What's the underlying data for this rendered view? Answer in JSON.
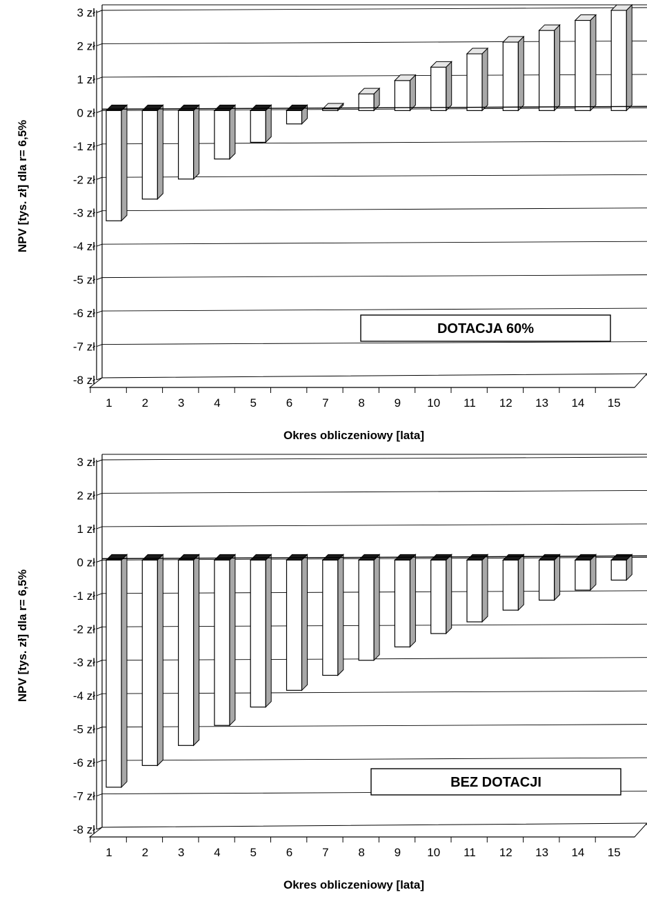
{
  "chart_data": [
    {
      "type": "bar",
      "annotation": "DOTACJA 60%",
      "xlabel": "Okres obliczeniowy [lata]",
      "ylabel": "NPV [tys. zł] dla r= 6,5%",
      "categories": [
        "1",
        "2",
        "3",
        "4",
        "5",
        "6",
        "7",
        "8",
        "9",
        "10",
        "11",
        "12",
        "13",
        "14",
        "15"
      ],
      "values": [
        -3.3,
        -2.65,
        -2.05,
        -1.45,
        -0.95,
        -0.4,
        0.05,
        0.5,
        0.9,
        1.3,
        1.7,
        2.05,
        2.4,
        2.7,
        3.0
      ],
      "ylim": [
        -8,
        3
      ],
      "yticks": [
        3,
        2,
        1,
        0,
        -1,
        -2,
        -3,
        -4,
        -5,
        -6,
        -7,
        -8
      ],
      "ytick_labels": [
        "3 zł",
        "2 zł",
        "1 zł",
        "0 zł",
        "-1 zł",
        "-2 zł",
        "-3 zł",
        "-4 zł",
        "-5 zł",
        "-6 zł",
        "-7 zł",
        "-8 zł"
      ],
      "grid": true,
      "style": "3d-column"
    },
    {
      "type": "bar",
      "annotation": "BEZ DOTACJI",
      "xlabel": "Okres obliczeniowy [lata]",
      "ylabel": "NPV [tys. zł] dla r= 6,5%",
      "categories": [
        "1",
        "2",
        "3",
        "4",
        "5",
        "6",
        "7",
        "8",
        "9",
        "10",
        "11",
        "12",
        "13",
        "14",
        "15"
      ],
      "values": [
        -6.8,
        -6.15,
        -5.55,
        -4.95,
        -4.4,
        -3.9,
        -3.45,
        -3.0,
        -2.6,
        -2.2,
        -1.85,
        -1.5,
        -1.2,
        -0.9,
        -0.6
      ],
      "ylim": [
        -8,
        3
      ],
      "yticks": [
        3,
        2,
        1,
        0,
        -1,
        -2,
        -3,
        -4,
        -5,
        -6,
        -7,
        -8
      ],
      "ytick_labels": [
        "3 zł",
        "2 zł",
        "1 zł",
        "0 zł",
        "-1 zł",
        "-2 zł",
        "-3 zł",
        "-4 zł",
        "-5 zł",
        "-6 zł",
        "-7 zł",
        "-8 zł"
      ],
      "grid": true,
      "style": "3d-column"
    }
  ],
  "colors": {
    "bar_front": "#ffffff",
    "bar_side": "#a8a8a8",
    "bar_top": "#1a1a1a",
    "grid": "#000000",
    "wall": "#ffffff"
  }
}
